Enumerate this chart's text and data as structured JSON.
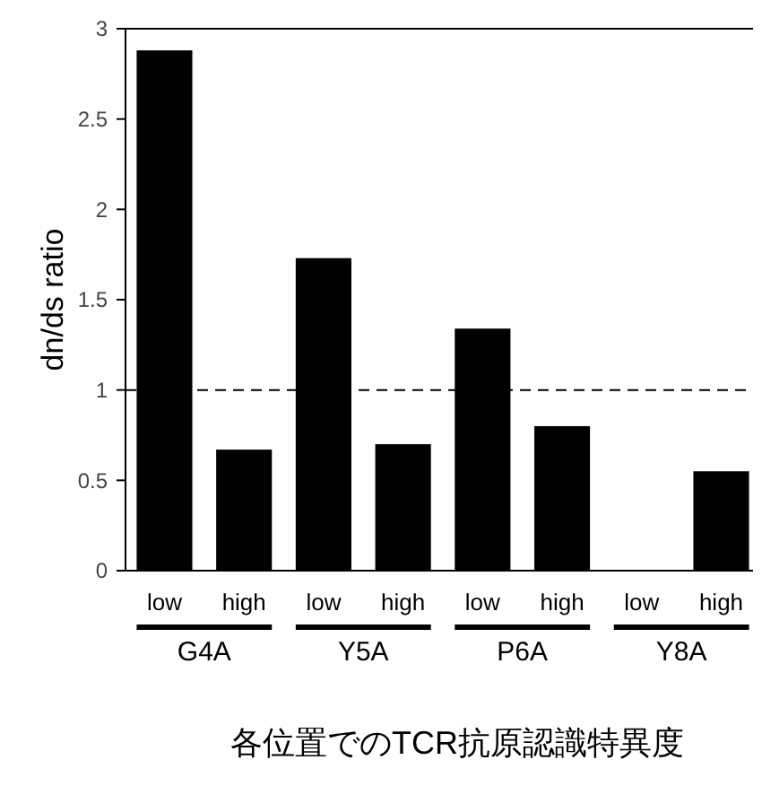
{
  "chart_data": {
    "type": "bar",
    "ylabel": "dn/ds ratio",
    "xlabel": "各位置でのTCR抗原認識特異度",
    "categories": [
      "low",
      "high",
      "low",
      "high",
      "low",
      "high",
      "low",
      "high"
    ],
    "values": [
      2.88,
      0.67,
      1.73,
      0.7,
      1.34,
      0.8,
      0,
      0.55
    ],
    "color": "#000000",
    "ylim": [
      0,
      3
    ],
    "yticks": [
      0,
      0.5,
      1,
      1.5,
      2,
      2.5,
      3
    ],
    "annotations": [
      "G4A",
      "Y5A",
      "P6A",
      "Y8A"
    ],
    "ref_lines": [
      {
        "axis": "y",
        "value": 1,
        "line_style": "dashed",
        "color": "#000000"
      }
    ]
  }
}
